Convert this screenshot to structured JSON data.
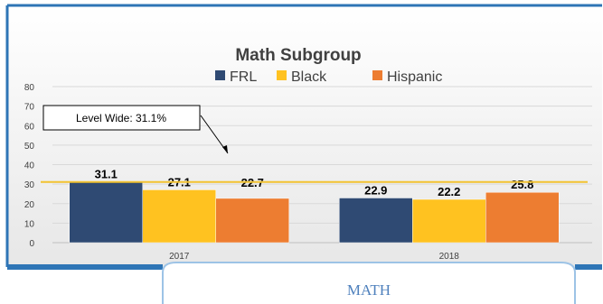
{
  "chart_data": {
    "type": "bar",
    "title": "Math Subgroup",
    "categories": [
      "2017",
      "2018"
    ],
    "series": [
      {
        "name": "FRL",
        "color": "#2F4A73",
        "values": [
          31.1,
          22.9
        ]
      },
      {
        "name": "Black",
        "color": "#FFC220",
        "values": [
          27.1,
          22.2
        ]
      },
      {
        "name": "Hispanic",
        "color": "#ED7D31",
        "values": [
          22.7,
          25.8
        ]
      }
    ],
    "ylim": [
      0,
      80
    ],
    "yticks": [
      "0",
      "10",
      "20",
      "30",
      "40",
      "50",
      "60",
      "70",
      "80"
    ],
    "grid": true,
    "legend_position": "top",
    "reference_line": {
      "value": 31.1,
      "color": "#F2C230"
    },
    "annotation": {
      "text": "Level Wide: 31.1%"
    }
  },
  "caption": {
    "text": "MATH"
  },
  "colors": {
    "frame_border": "#2E75B6",
    "caption_border": "#9DC3E6",
    "caption_text": "#4F81BD",
    "plot_bg_top": "#FFFFFF",
    "plot_bg_bottom": "#E7E7E7"
  }
}
